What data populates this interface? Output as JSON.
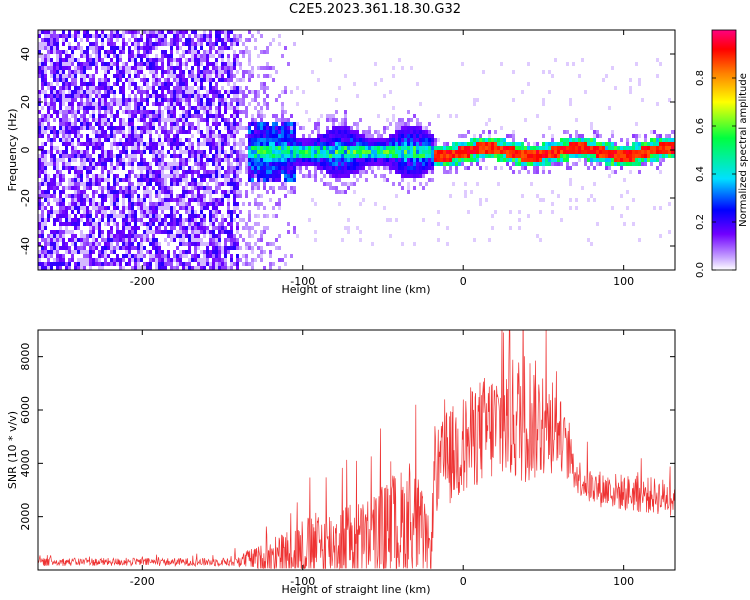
{
  "title": "C2E5.2023.361.18.30.G32",
  "colors": {
    "snr_line": "#ee3333",
    "ridge": "#ee3333",
    "purple_dark": "#6a00f0",
    "purple_light": "#c9a8ff",
    "cyan": "#00e0e0",
    "green": "#40ff40"
  },
  "chart_data": [
    {
      "type": "heatmap",
      "name": "spectrogram",
      "xlabel": "Height of straight line (km)",
      "ylabel": "Frequency (Hz)",
      "xlim": [
        -265,
        132
      ],
      "ylim": [
        -50,
        50
      ],
      "xticks": [
        -200,
        -100,
        0,
        100
      ],
      "xtick_labels": [
        "-200",
        "-100",
        "0",
        "100"
      ],
      "yticks": [
        -40,
        -20,
        0,
        20,
        40
      ],
      "ytick_labels": [
        "-40",
        "-20",
        "0",
        "20",
        "40"
      ],
      "colorbar": {
        "label": "Normalized spectral amplitude",
        "range": [
          0.0,
          1.0
        ],
        "ticks": [
          0.0,
          0.2,
          0.4,
          0.6,
          0.8
        ],
        "tick_labels": [
          "0.0",
          "0.2",
          "0.4",
          "0.6",
          "0.8"
        ],
        "colormap": "rainbow"
      },
      "regions": [
        {
          "x_range": [
            -265,
            -140
          ],
          "freq_band": [
            -50,
            50
          ],
          "amplitude": 0.2
        },
        {
          "x_range": [
            -140,
            -105
          ],
          "freq_band": [
            -50,
            50
          ],
          "amplitude": 0.1
        },
        {
          "x_range": [
            -135,
            -20
          ],
          "freq_band": [
            -10,
            10
          ],
          "amplitude": 0.45
        },
        {
          "x_range": [
            -20,
            132
          ],
          "freq_band": [
            -3,
            3
          ],
          "amplitude": 0.95
        }
      ]
    },
    {
      "type": "line",
      "name": "snr",
      "xlabel": "Height of straight line (km)",
      "ylabel": "SNR (10 * v/v)",
      "xlim": [
        -265,
        132
      ],
      "ylim": [
        0,
        9000
      ],
      "xticks": [
        -200,
        -100,
        0,
        100
      ],
      "xtick_labels": [
        "-200",
        "-100",
        "0",
        "100"
      ],
      "yticks": [
        2000,
        4000,
        6000,
        8000
      ],
      "ytick_labels": [
        "2000",
        "4000",
        "6000",
        "8000"
      ],
      "envelope": {
        "x": [
          -265,
          -150,
          -140,
          -120,
          -100,
          -80,
          -60,
          -40,
          -30,
          -20,
          -18,
          -10,
          0,
          10,
          20,
          30,
          40,
          50,
          60,
          70,
          80,
          100,
          132
        ],
        "center": [
          300,
          300,
          350,
          500,
          800,
          1000,
          1200,
          1600,
          1800,
          700,
          3500,
          4200,
          4600,
          5200,
          5400,
          5600,
          5800,
          5400,
          5200,
          3600,
          3100,
          2900,
          2700
        ],
        "spread": [
          150,
          150,
          250,
          600,
          1200,
          1400,
          1500,
          2200,
          2200,
          900,
          1500,
          1800,
          2000,
          2000,
          2200,
          2400,
          2600,
          2000,
          1400,
          700,
          700,
          700,
          700
        ]
      }
    }
  ]
}
